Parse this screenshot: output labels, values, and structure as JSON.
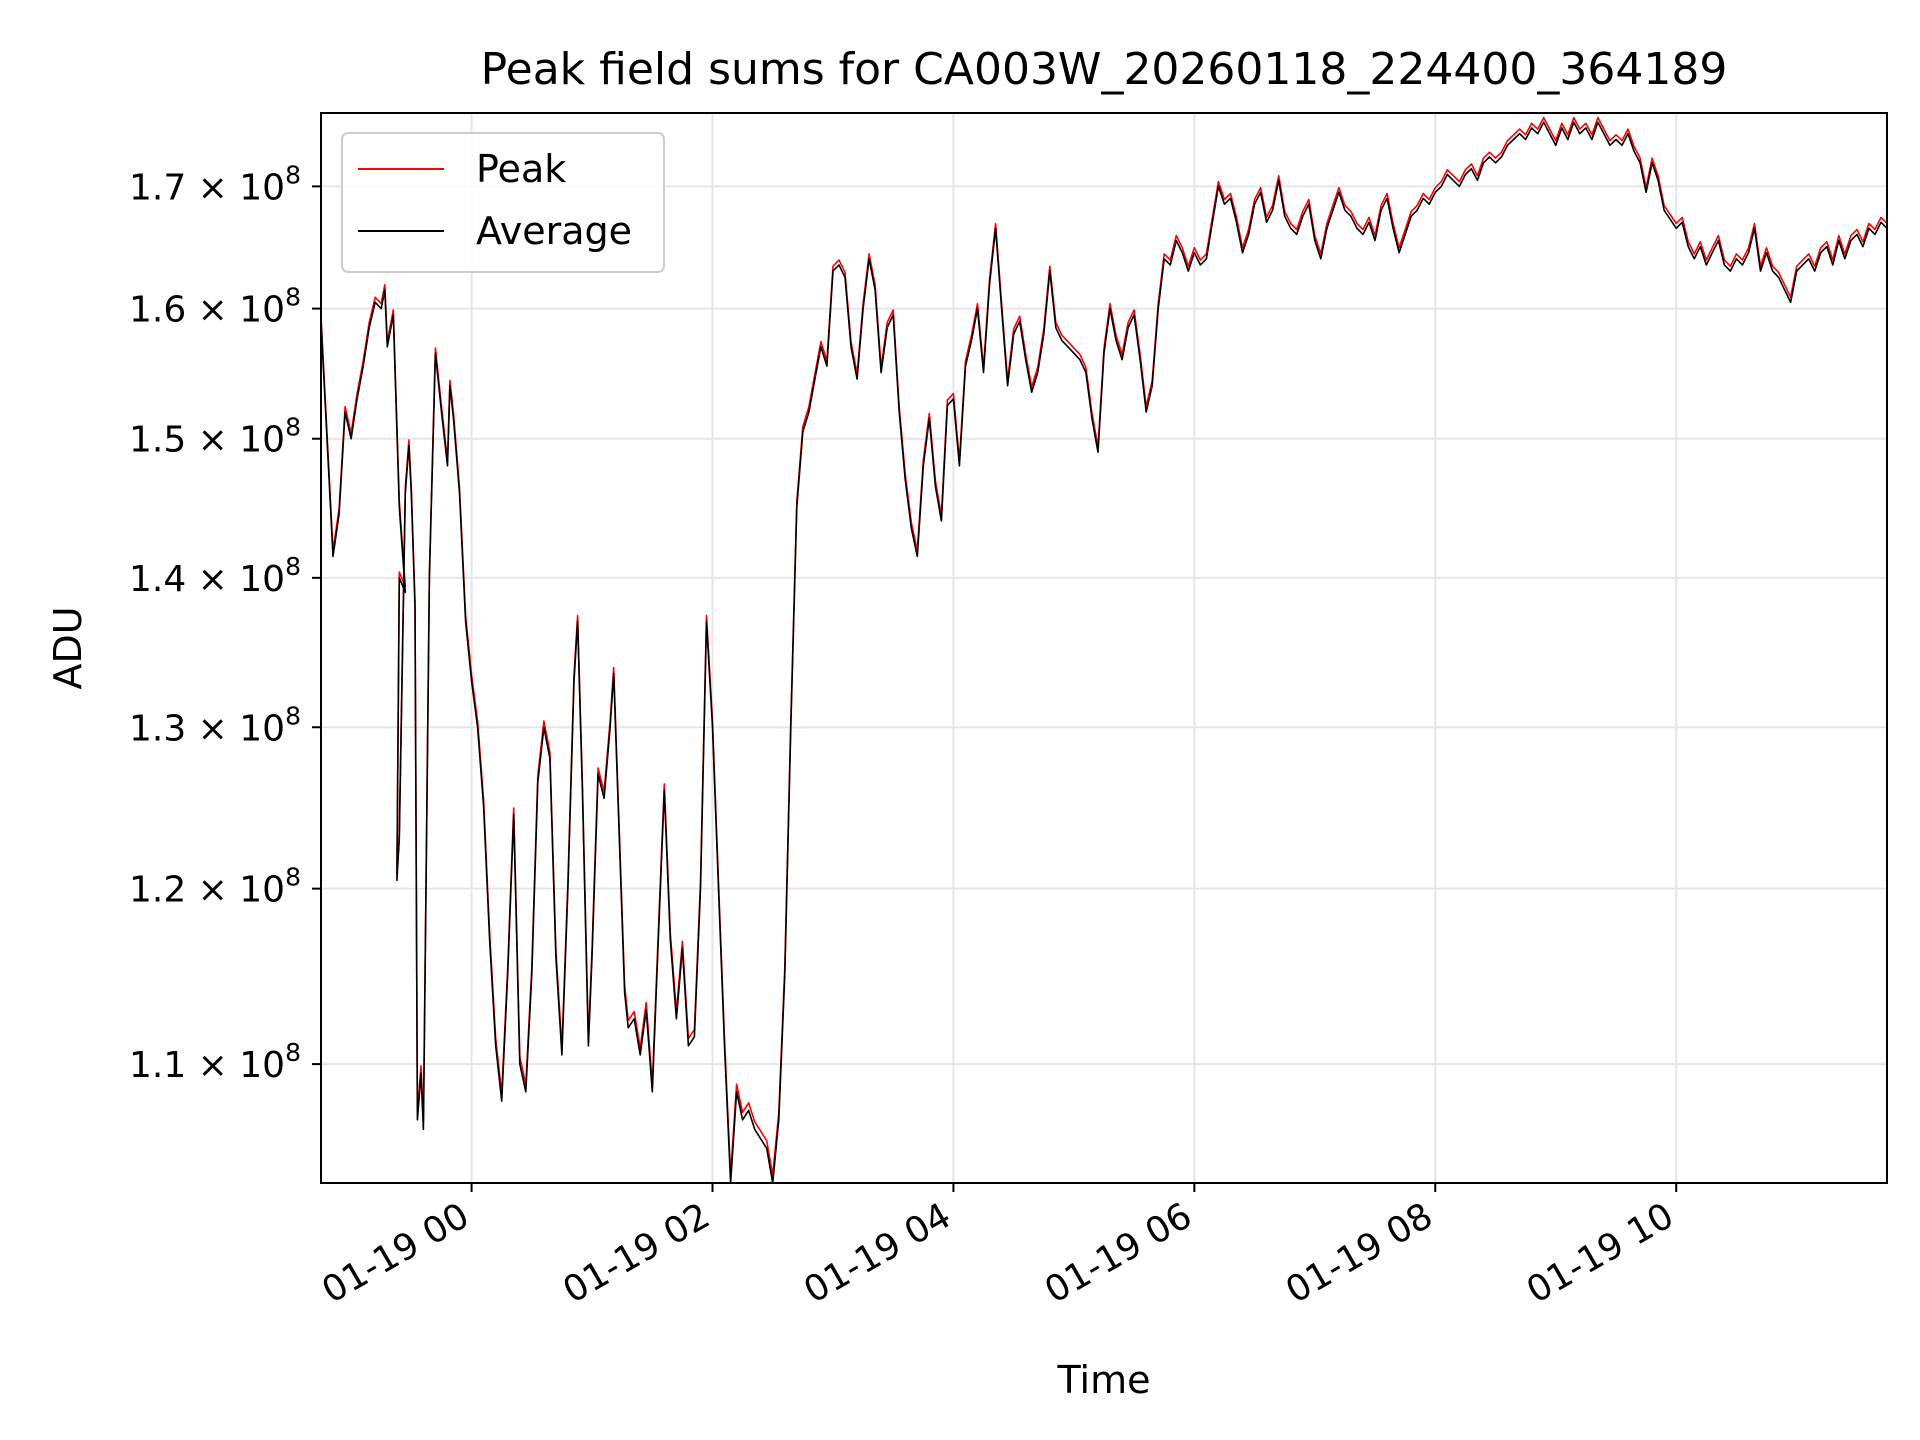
{
  "chart_data": {
    "type": "line",
    "title": "Peak field sums for CA003W_20260118_224400_364189",
    "xlabel": "Time",
    "ylabel": "ADU",
    "yscale": "log",
    "x_unit": "hours since 2026-01-19 00:00",
    "xlim": [
      -1.25,
      11.75
    ],
    "ylim": [
      103700000,
      176300000
    ],
    "grid": true,
    "legend_position": "upper-left",
    "x_ticks": [
      {
        "value": 0,
        "label": "01-19 00"
      },
      {
        "value": 2,
        "label": "01-19 02"
      },
      {
        "value": 4,
        "label": "01-19 04"
      },
      {
        "value": 6,
        "label": "01-19 06"
      },
      {
        "value": 8,
        "label": "01-19 08"
      },
      {
        "value": 10,
        "label": "01-19 10"
      }
    ],
    "y_ticks": [
      {
        "value": 110000000,
        "mantissa": "1.1"
      },
      {
        "value": 120000000,
        "mantissa": "1.2"
      },
      {
        "value": 130000000,
        "mantissa": "1.3"
      },
      {
        "value": 140000000,
        "mantissa": "1.4"
      },
      {
        "value": 150000000,
        "mantissa": "1.5"
      },
      {
        "value": 160000000,
        "mantissa": "1.6"
      },
      {
        "value": 170000000,
        "mantissa": "1.7"
      }
    ],
    "y_tick_suffix": "× 10",
    "y_tick_exponent": "8",
    "series": [
      {
        "name": "Peak",
        "color": "#ff0000",
        "offset": 400000
      },
      {
        "name": "Average",
        "color": "#000000",
        "offset": 0
      }
    ],
    "points": [
      [
        -1.25,
        159.0
      ],
      [
        -1.2,
        150.0
      ],
      [
        -1.15,
        141.5
      ],
      [
        -1.1,
        144.5
      ],
      [
        -1.05,
        152.0
      ],
      [
        -1.0,
        150.0
      ],
      [
        -0.95,
        153.0
      ],
      [
        -0.9,
        155.5
      ],
      [
        -0.85,
        158.5
      ],
      [
        -0.8,
        160.5
      ],
      [
        -0.75,
        160.0
      ],
      [
        -0.72,
        161.5
      ],
      [
        -0.7,
        157.0
      ],
      [
        -0.65,
        159.5
      ],
      [
        -0.6,
        145.0
      ],
      [
        -0.55,
        139.0
      ],
      [
        -0.6,
        140.0
      ],
      [
        -0.62,
        120.5
      ],
      [
        -0.6,
        123.0
      ],
      [
        -0.55,
        146.0
      ],
      [
        -0.52,
        149.5
      ],
      [
        -0.5,
        146.0
      ],
      [
        -0.47,
        138.0
      ],
      [
        -0.45,
        107.0
      ],
      [
        -0.42,
        109.5
      ],
      [
        -0.4,
        106.5
      ],
      [
        -0.35,
        140.0
      ],
      [
        -0.3,
        156.5
      ],
      [
        -0.25,
        152.0
      ],
      [
        -0.2,
        148.0
      ],
      [
        -0.18,
        154.0
      ],
      [
        -0.15,
        151.5
      ],
      [
        -0.1,
        146.0
      ],
      [
        -0.05,
        137.0
      ],
      [
        0.0,
        133.0
      ],
      [
        0.05,
        130.0
      ],
      [
        0.1,
        125.0
      ],
      [
        0.15,
        117.0
      ],
      [
        0.2,
        111.0
      ],
      [
        0.25,
        108.0
      ],
      [
        0.3,
        115.0
      ],
      [
        0.35,
        124.5
      ],
      [
        0.4,
        110.0
      ],
      [
        0.45,
        108.5
      ],
      [
        0.5,
        115.0
      ],
      [
        0.55,
        126.5
      ],
      [
        0.6,
        130.0
      ],
      [
        0.65,
        128.0
      ],
      [
        0.7,
        116.0
      ],
      [
        0.75,
        110.5
      ],
      [
        0.8,
        120.0
      ],
      [
        0.85,
        133.0
      ],
      [
        0.88,
        137.0
      ],
      [
        0.92,
        126.0
      ],
      [
        0.97,
        111.0
      ],
      [
        1.0,
        116.0
      ],
      [
        1.05,
        127.0
      ],
      [
        1.1,
        125.5
      ],
      [
        1.15,
        130.0
      ],
      [
        1.18,
        133.5
      ],
      [
        1.22,
        124.5
      ],
      [
        1.27,
        114.0
      ],
      [
        1.3,
        112.0
      ],
      [
        1.35,
        112.5
      ],
      [
        1.4,
        110.5
      ],
      [
        1.45,
        113.0
      ],
      [
        1.5,
        108.5
      ],
      [
        1.55,
        117.0
      ],
      [
        1.6,
        126.0
      ],
      [
        1.65,
        117.0
      ],
      [
        1.7,
        112.5
      ],
      [
        1.75,
        116.5
      ],
      [
        1.8,
        111.0
      ],
      [
        1.85,
        111.5
      ],
      [
        1.9,
        120.0
      ],
      [
        1.95,
        137.0
      ],
      [
        2.0,
        130.0
      ],
      [
        2.05,
        120.0
      ],
      [
        2.1,
        111.0
      ],
      [
        2.15,
        103.7
      ],
      [
        2.2,
        108.5
      ],
      [
        2.25,
        107.0
      ],
      [
        2.3,
        107.5
      ],
      [
        2.35,
        106.5
      ],
      [
        2.4,
        106.0
      ],
      [
        2.45,
        105.5
      ],
      [
        2.5,
        103.7
      ],
      [
        2.55,
        107.0
      ],
      [
        2.6,
        115.0
      ],
      [
        2.65,
        130.0
      ],
      [
        2.7,
        145.0
      ],
      [
        2.75,
        150.5
      ],
      [
        2.8,
        152.0
      ],
      [
        2.85,
        154.5
      ],
      [
        2.9,
        157.0
      ],
      [
        2.95,
        155.5
      ],
      [
        3.0,
        163.0
      ],
      [
        3.05,
        163.5
      ],
      [
        3.1,
        162.5
      ],
      [
        3.15,
        157.0
      ],
      [
        3.2,
        154.5
      ],
      [
        3.25,
        160.0
      ],
      [
        3.3,
        164.0
      ],
      [
        3.35,
        161.5
      ],
      [
        3.4,
        155.0
      ],
      [
        3.45,
        158.5
      ],
      [
        3.5,
        159.5
      ],
      [
        3.55,
        152.0
      ],
      [
        3.6,
        147.0
      ],
      [
        3.65,
        143.5
      ],
      [
        3.7,
        141.5
      ],
      [
        3.75,
        148.0
      ],
      [
        3.8,
        151.5
      ],
      [
        3.85,
        146.5
      ],
      [
        3.9,
        144.0
      ],
      [
        3.95,
        152.5
      ],
      [
        4.0,
        153.0
      ],
      [
        4.05,
        148.0
      ],
      [
        4.1,
        155.5
      ],
      [
        4.15,
        157.5
      ],
      [
        4.2,
        160.0
      ],
      [
        4.25,
        155.0
      ],
      [
        4.3,
        162.0
      ],
      [
        4.35,
        166.5
      ],
      [
        4.4,
        160.0
      ],
      [
        4.45,
        154.0
      ],
      [
        4.5,
        158.0
      ],
      [
        4.55,
        159.0
      ],
      [
        4.6,
        156.0
      ],
      [
        4.65,
        153.5
      ],
      [
        4.7,
        155.0
      ],
      [
        4.75,
        158.0
      ],
      [
        4.8,
        163.0
      ],
      [
        4.85,
        158.5
      ],
      [
        4.9,
        157.5
      ],
      [
        4.95,
        157.0
      ],
      [
        5.0,
        156.5
      ],
      [
        5.05,
        156.0
      ],
      [
        5.1,
        155.0
      ],
      [
        5.15,
        151.5
      ],
      [
        5.2,
        149.0
      ],
      [
        5.25,
        156.5
      ],
      [
        5.3,
        160.0
      ],
      [
        5.35,
        157.5
      ],
      [
        5.4,
        156.0
      ],
      [
        5.45,
        158.5
      ],
      [
        5.5,
        159.5
      ],
      [
        5.55,
        156.0
      ],
      [
        5.6,
        152.0
      ],
      [
        5.65,
        154.0
      ],
      [
        5.7,
        160.0
      ],
      [
        5.75,
        164.0
      ],
      [
        5.8,
        163.5
      ],
      [
        5.85,
        165.5
      ],
      [
        5.9,
        164.5
      ],
      [
        5.95,
        163.0
      ],
      [
        6.0,
        164.5
      ],
      [
        6.05,
        163.5
      ],
      [
        6.1,
        164.0
      ],
      [
        6.15,
        167.0
      ],
      [
        6.2,
        170.0
      ],
      [
        6.25,
        168.5
      ],
      [
        6.3,
        169.0
      ],
      [
        6.35,
        167.0
      ],
      [
        6.4,
        164.5
      ],
      [
        6.45,
        166.0
      ],
      [
        6.5,
        168.5
      ],
      [
        6.55,
        169.5
      ],
      [
        6.6,
        167.0
      ],
      [
        6.65,
        168.0
      ],
      [
        6.7,
        170.5
      ],
      [
        6.75,
        167.5
      ],
      [
        6.8,
        166.5
      ],
      [
        6.85,
        166.0
      ],
      [
        6.9,
        167.5
      ],
      [
        6.95,
        168.5
      ],
      [
        7.0,
        165.5
      ],
      [
        7.05,
        164.0
      ],
      [
        7.1,
        166.5
      ],
      [
        7.15,
        168.0
      ],
      [
        7.2,
        169.5
      ],
      [
        7.25,
        168.0
      ],
      [
        7.3,
        167.5
      ],
      [
        7.35,
        166.5
      ],
      [
        7.4,
        166.0
      ],
      [
        7.45,
        167.0
      ],
      [
        7.5,
        165.5
      ],
      [
        7.55,
        168.0
      ],
      [
        7.6,
        169.0
      ],
      [
        7.65,
        166.5
      ],
      [
        7.7,
        164.5
      ],
      [
        7.75,
        166.0
      ],
      [
        7.8,
        167.5
      ],
      [
        7.85,
        168.0
      ],
      [
        7.9,
        169.0
      ],
      [
        7.95,
        168.5
      ],
      [
        8.0,
        169.5
      ],
      [
        8.05,
        170.0
      ],
      [
        8.1,
        171.0
      ],
      [
        8.15,
        170.5
      ],
      [
        8.2,
        170.0
      ],
      [
        8.25,
        171.0
      ],
      [
        8.3,
        171.5
      ],
      [
        8.35,
        170.5
      ],
      [
        8.4,
        172.0
      ],
      [
        8.45,
        172.5
      ],
      [
        8.5,
        172.0
      ],
      [
        8.55,
        172.5
      ],
      [
        8.6,
        173.5
      ],
      [
        8.65,
        174.0
      ],
      [
        8.7,
        174.5
      ],
      [
        8.75,
        174.0
      ],
      [
        8.8,
        175.0
      ],
      [
        8.85,
        174.5
      ],
      [
        8.9,
        175.5
      ],
      [
        8.95,
        174.5
      ],
      [
        9.0,
        173.5
      ],
      [
        9.05,
        175.0
      ],
      [
        9.1,
        174.0
      ],
      [
        9.15,
        175.5
      ],
      [
        9.2,
        174.5
      ],
      [
        9.25,
        175.0
      ],
      [
        9.3,
        174.0
      ],
      [
        9.35,
        175.5
      ],
      [
        9.4,
        174.5
      ],
      [
        9.45,
        173.5
      ],
      [
        9.5,
        174.0
      ],
      [
        9.55,
        173.5
      ],
      [
        9.6,
        174.5
      ],
      [
        9.65,
        173.0
      ],
      [
        9.7,
        172.0
      ],
      [
        9.75,
        169.5
      ],
      [
        9.8,
        172.0
      ],
      [
        9.85,
        170.5
      ],
      [
        9.9,
        168.0
      ],
      [
        10.0,
        166.5
      ],
      [
        10.05,
        167.0
      ],
      [
        10.1,
        165.0
      ],
      [
        10.15,
        164.0
      ],
      [
        10.2,
        165.0
      ],
      [
        10.25,
        163.5
      ],
      [
        10.3,
        164.5
      ],
      [
        10.35,
        165.5
      ],
      [
        10.4,
        163.5
      ],
      [
        10.45,
        163.0
      ],
      [
        10.5,
        164.0
      ],
      [
        10.55,
        163.5
      ],
      [
        10.6,
        164.5
      ],
      [
        10.65,
        166.5
      ],
      [
        10.7,
        163.0
      ],
      [
        10.75,
        164.5
      ],
      [
        10.8,
        163.0
      ],
      [
        10.85,
        162.5
      ],
      [
        10.9,
        161.5
      ],
      [
        10.95,
        160.5
      ],
      [
        11.0,
        163.0
      ],
      [
        11.05,
        163.5
      ],
      [
        11.1,
        164.0
      ],
      [
        11.15,
        163.0
      ],
      [
        11.2,
        164.5
      ],
      [
        11.25,
        165.0
      ],
      [
        11.3,
        163.5
      ],
      [
        11.35,
        165.5
      ],
      [
        11.4,
        164.0
      ],
      [
        11.45,
        165.5
      ],
      [
        11.5,
        166.0
      ],
      [
        11.55,
        165.0
      ],
      [
        11.6,
        166.5
      ],
      [
        11.65,
        166.0
      ],
      [
        11.7,
        167.0
      ],
      [
        11.75,
        166.5
      ]
    ],
    "points_unit": "millions of ADU"
  }
}
